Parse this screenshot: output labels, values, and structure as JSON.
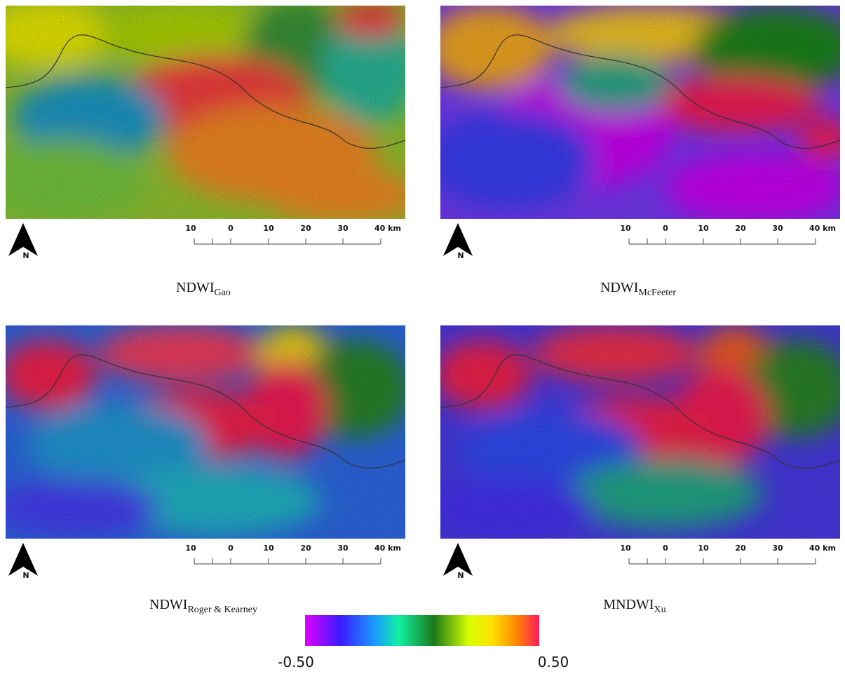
{
  "panels": [
    {
      "label": "NDWI",
      "subscript": "Gao"
    },
    {
      "label": "NDWI",
      "subscript": "McFeeter"
    },
    {
      "label": "NDWI",
      "subscript": "Roger & Kearney"
    },
    {
      "label": "MNDWI",
      "subscript": "Xu"
    }
  ],
  "scale_bar": [
    "10",
    "0",
    "10",
    "20",
    "30",
    "40 km"
  ],
  "north": "N",
  "colorbar": {
    "min": "-0.50",
    "max": "0.50"
  }
}
